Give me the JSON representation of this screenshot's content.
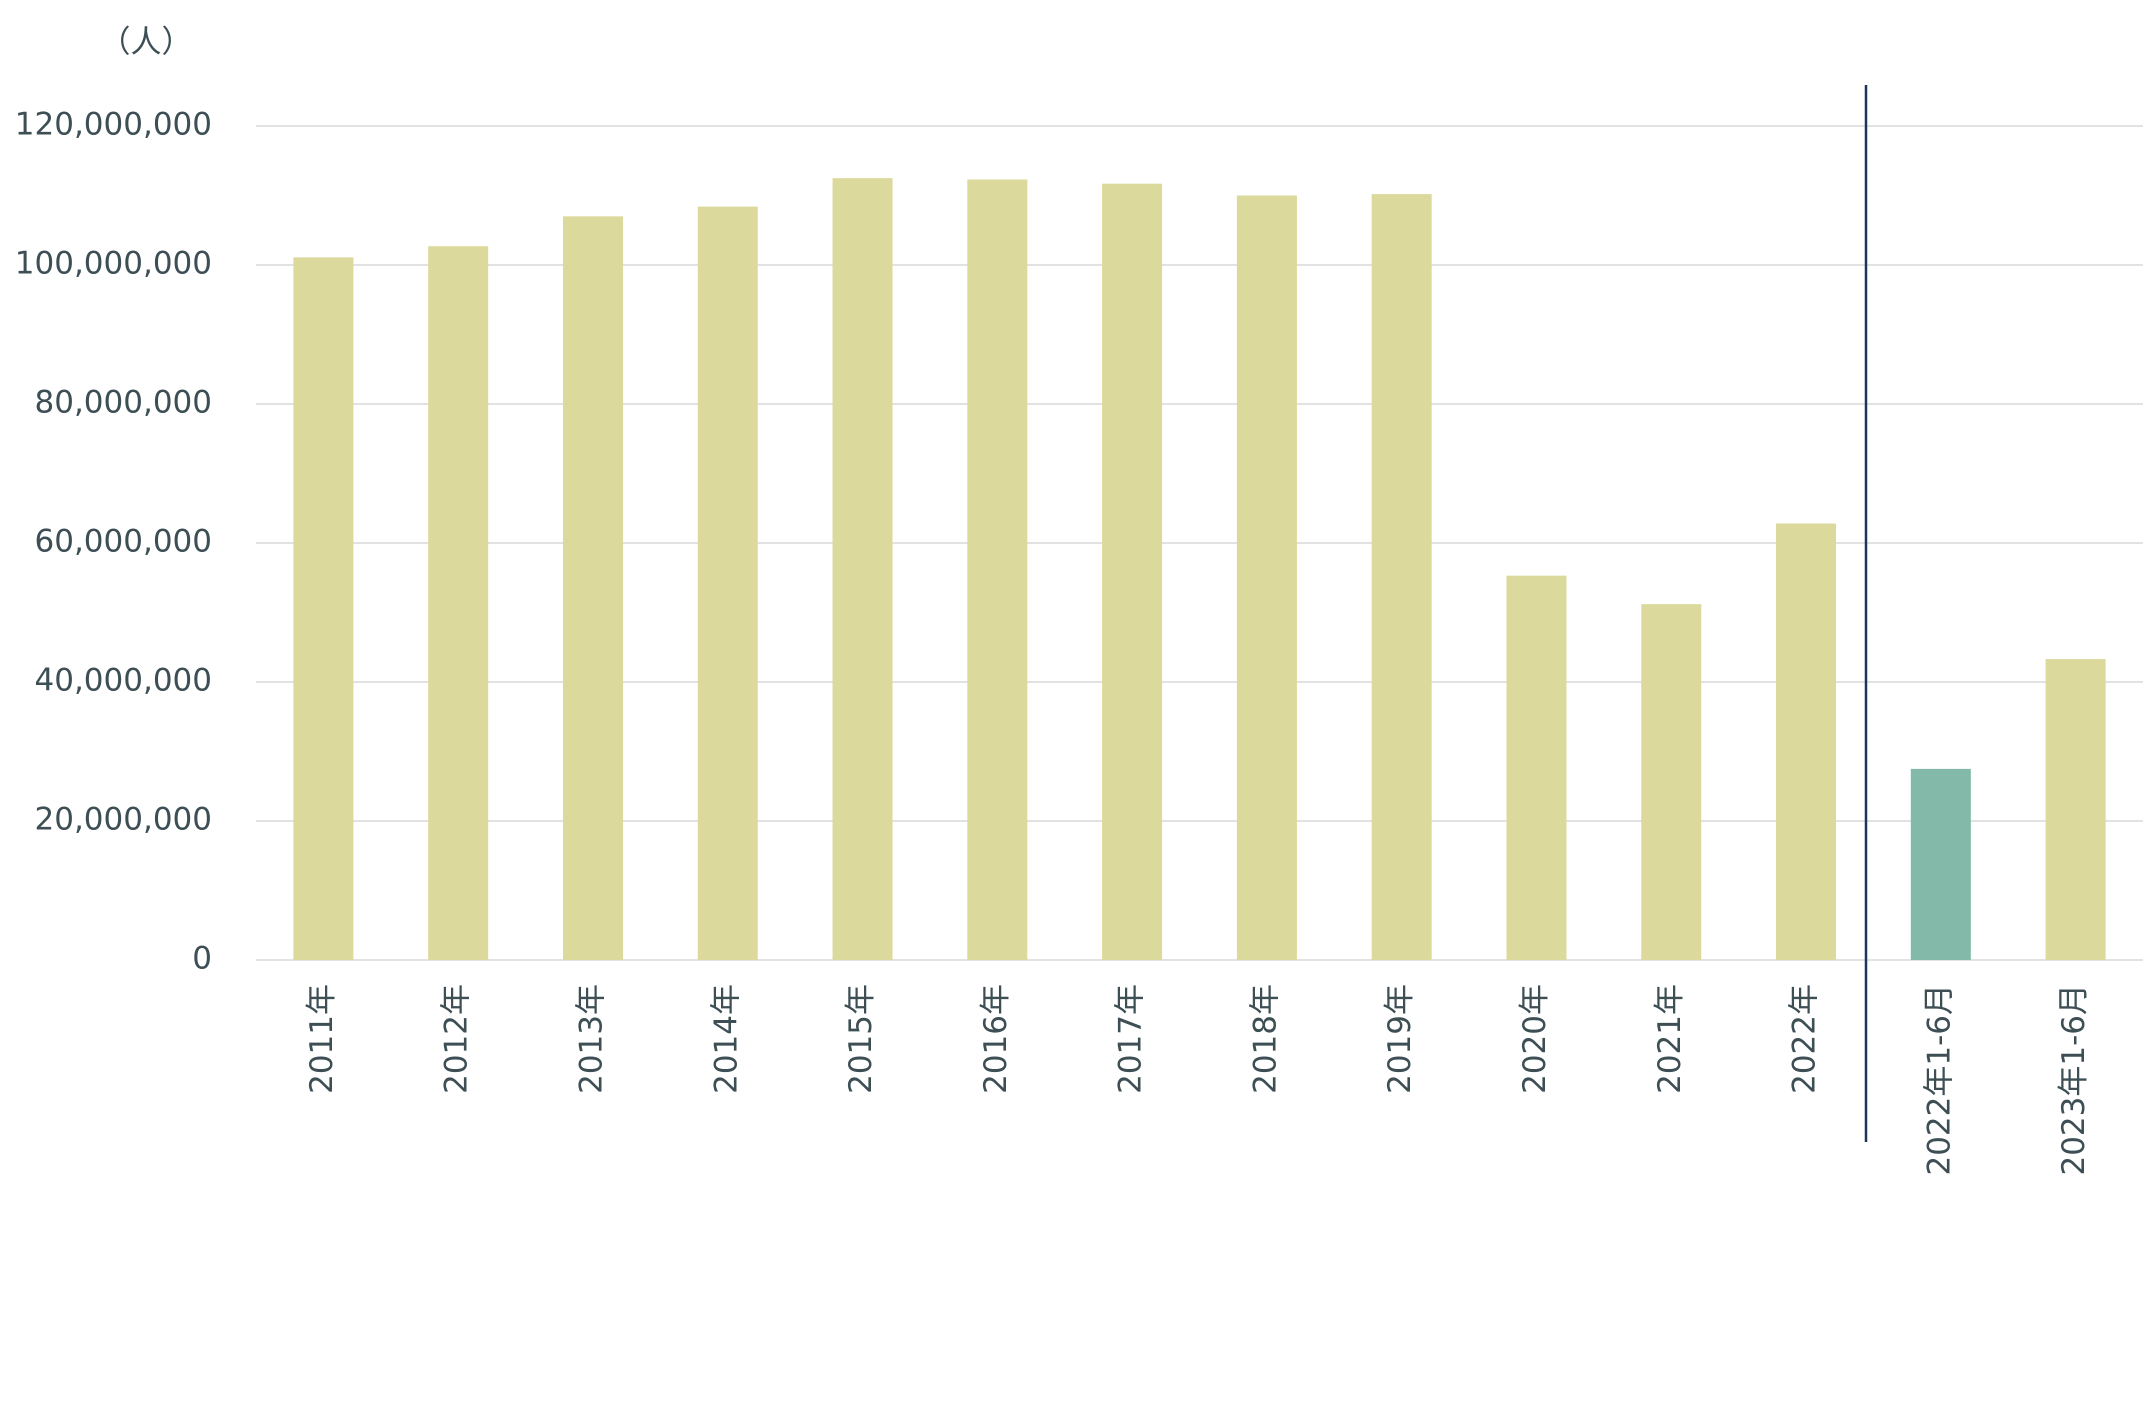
{
  "chart_data": {
    "type": "bar",
    "y_axis_label": "（人）",
    "categories": [
      "2011年",
      "2012年",
      "2013年",
      "2014年",
      "2015年",
      "2016年",
      "2017年",
      "2018年",
      "2019年",
      "2020年",
      "2021年",
      "2022年",
      "2022年1-6月",
      "2023年1-6月"
    ],
    "values": [
      101100000,
      102700000,
      107000000,
      108400000,
      112500000,
      112300000,
      111700000,
      110000000,
      110200000,
      55300000,
      51200000,
      62800000,
      27500000,
      43300000
    ],
    "colors": [
      "#dbd99b",
      "#dbd99b",
      "#dbd99b",
      "#dbd99b",
      "#dbd99b",
      "#dbd99b",
      "#dbd99b",
      "#dbd99b",
      "#dbd99b",
      "#dbd99b",
      "#dbd99b",
      "#dbd99b",
      "#82b9a8",
      "#dbd99b"
    ],
    "ylim": [
      0,
      120000000
    ],
    "yticks": [
      {
        "value": 0,
        "label": "0"
      },
      {
        "value": 20000000,
        "label": "20,000,000"
      },
      {
        "value": 40000000,
        "label": "40,000,000"
      },
      {
        "value": 60000000,
        "label": "60,000,000"
      },
      {
        "value": 80000000,
        "label": "80,000,000"
      },
      {
        "value": 100000000,
        "label": "100,000,000"
      },
      {
        "value": 120000000,
        "label": "120,000,000"
      }
    ],
    "grid": true
  }
}
